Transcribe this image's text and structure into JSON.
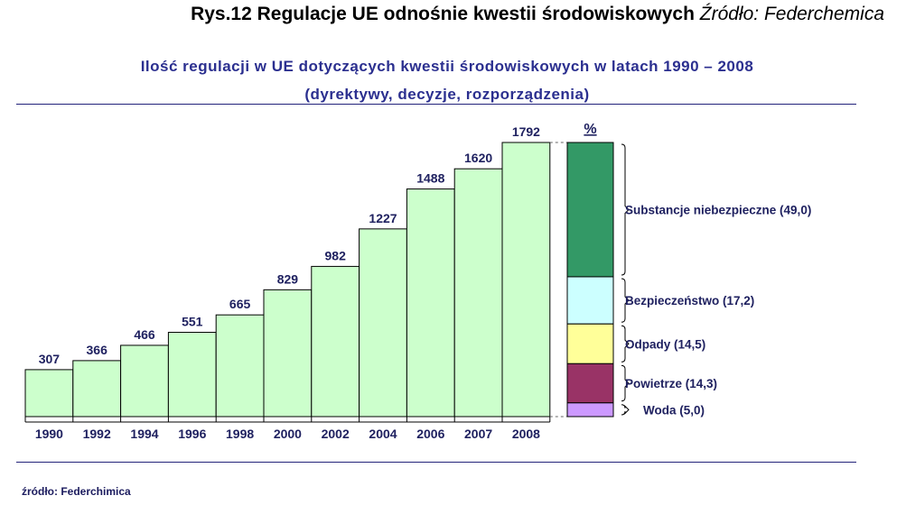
{
  "figure": {
    "title": "Rys.12 Regulacje UE odnośnie kwestii środowiskowych",
    "source": "Źródło: Federchemica"
  },
  "chart_data": [
    {
      "type": "bar",
      "title": "Ilość regulacji w UE dotyczących kwestii środowiskowych w latach 1990 – 2008",
      "subtitle": "(dyrektywy, decyzje, rozporządzenia)",
      "categories": [
        "1990",
        "1992",
        "1994",
        "1996",
        "1998",
        "2000",
        "2002",
        "2004",
        "2006",
        "2007",
        "2008"
      ],
      "values": [
        307,
        366,
        466,
        551,
        665,
        829,
        982,
        1227,
        1488,
        1620,
        1792
      ],
      "ylim": [
        0,
        1792
      ],
      "grid": false,
      "bar_color": "#ccffcc"
    },
    {
      "type": "bar",
      "stacked": true,
      "header": "%",
      "segments": [
        {
          "name": "Substancje niebezpieczne",
          "value": 49.0,
          "label": "Substancje niebezpieczne (49,0)",
          "color": "#339966"
        },
        {
          "name": "Bezpieczeństwo",
          "value": 17.2,
          "label": "Bezpieczeństwo (17,2)",
          "color": "#ccffff"
        },
        {
          "name": "Odpady",
          "value": 14.5,
          "label": "Odpady (14,5)",
          "color": "#ffff99"
        },
        {
          "name": "Powietrze",
          "value": 14.3,
          "label": "Powietrze (14,3)",
          "color": "#993366"
        },
        {
          "name": "Woda",
          "value": 5.0,
          "label": "Woda  (5,0)",
          "color": "#cc99ff"
        }
      ]
    }
  ],
  "footer": "źródło: Federchimica"
}
